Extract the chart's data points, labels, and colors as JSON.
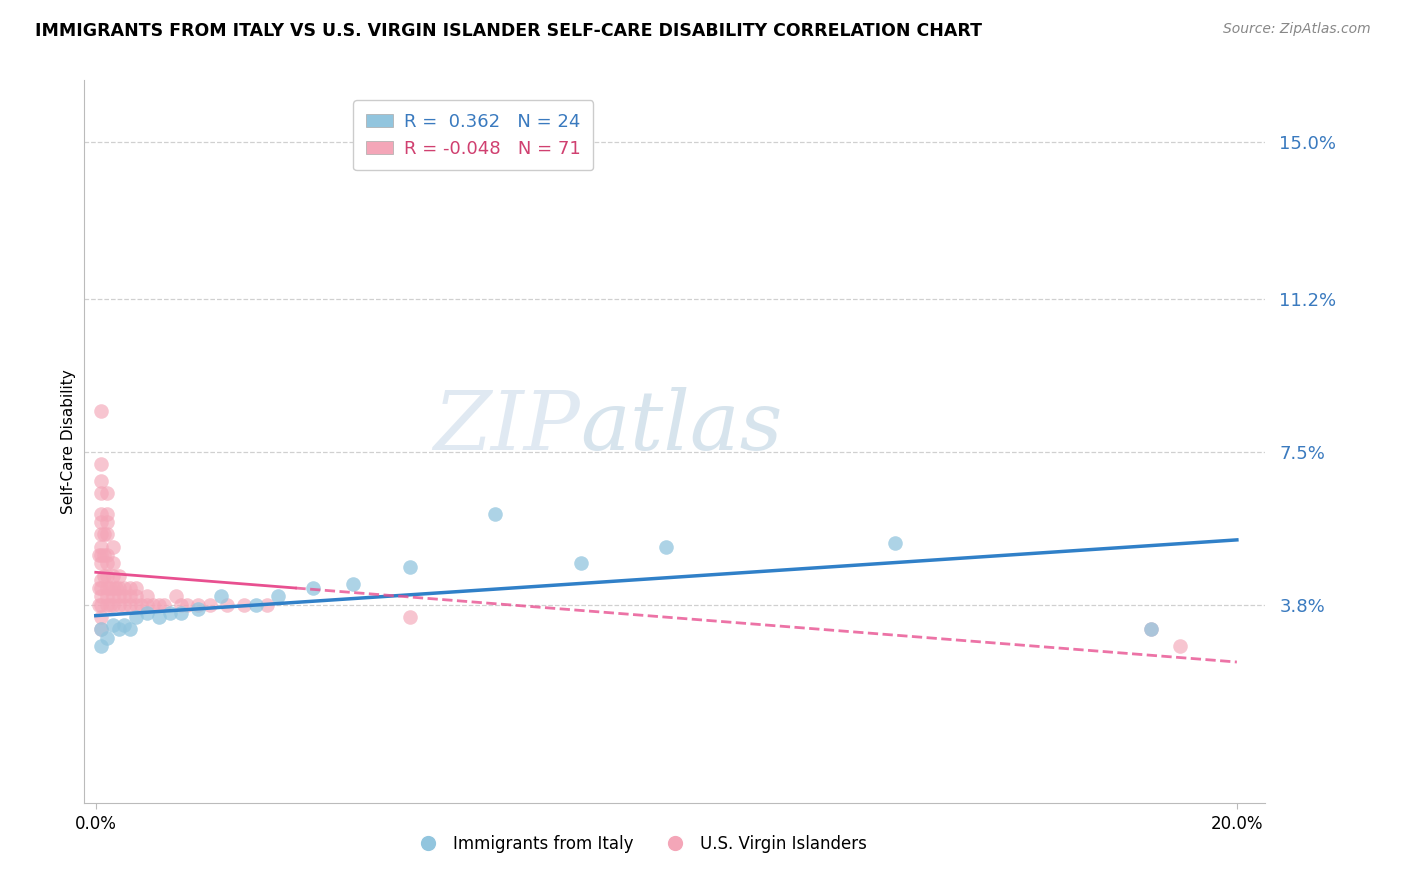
{
  "title": "IMMIGRANTS FROM ITALY VS U.S. VIRGIN ISLANDER SELF-CARE DISABILITY CORRELATION CHART",
  "source_text": "Source: ZipAtlas.com",
  "ylabel": "Self-Care Disability",
  "xlim": [
    -0.002,
    0.205
  ],
  "ylim": [
    -0.01,
    0.165
  ],
  "yticks": [
    0.038,
    0.075,
    0.112,
    0.15
  ],
  "ytick_labels": [
    "3.8%",
    "7.5%",
    "11.2%",
    "15.0%"
  ],
  "xtick_positions": [
    0.0,
    0.2
  ],
  "xtick_labels": [
    "0.0%",
    "20.0%"
  ],
  "blue_color": "#92c5de",
  "pink_color": "#f4a6b8",
  "blue_line_color": "#3080c8",
  "pink_line_color": "#e85090",
  "R_blue": 0.362,
  "N_blue": 24,
  "R_pink": -0.048,
  "N_pink": 71,
  "watermark_zip": "ZIP",
  "watermark_atlas": "atlas",
  "legend_label_blue": "Immigrants from Italy",
  "legend_label_pink": "U.S. Virgin Islanders",
  "blue_x": [
    0.001,
    0.001,
    0.002,
    0.003,
    0.004,
    0.005,
    0.006,
    0.007,
    0.009,
    0.011,
    0.013,
    0.015,
    0.018,
    0.022,
    0.028,
    0.032,
    0.038,
    0.045,
    0.055,
    0.07,
    0.085,
    0.1,
    0.14,
    0.185
  ],
  "blue_y": [
    0.028,
    0.032,
    0.03,
    0.033,
    0.032,
    0.033,
    0.032,
    0.035,
    0.036,
    0.035,
    0.036,
    0.036,
    0.037,
    0.04,
    0.038,
    0.04,
    0.042,
    0.043,
    0.047,
    0.06,
    0.048,
    0.052,
    0.053,
    0.032
  ],
  "pink_x": [
    0.0005,
    0.0005,
    0.0005,
    0.001,
    0.001,
    0.001,
    0.001,
    0.001,
    0.001,
    0.001,
    0.001,
    0.001,
    0.001,
    0.001,
    0.001,
    0.001,
    0.001,
    0.001,
    0.001,
    0.0015,
    0.0015,
    0.0015,
    0.002,
    0.002,
    0.002,
    0.002,
    0.002,
    0.002,
    0.002,
    0.002,
    0.002,
    0.002,
    0.0025,
    0.0025,
    0.003,
    0.003,
    0.003,
    0.003,
    0.003,
    0.003,
    0.0035,
    0.004,
    0.004,
    0.004,
    0.004,
    0.005,
    0.005,
    0.005,
    0.006,
    0.006,
    0.006,
    0.007,
    0.007,
    0.007,
    0.008,
    0.009,
    0.009,
    0.01,
    0.011,
    0.012,
    0.014,
    0.015,
    0.016,
    0.018,
    0.02,
    0.023,
    0.026,
    0.03,
    0.055,
    0.185,
    0.19
  ],
  "pink_y": [
    0.038,
    0.042,
    0.05,
    0.032,
    0.035,
    0.038,
    0.04,
    0.042,
    0.044,
    0.048,
    0.05,
    0.052,
    0.055,
    0.058,
    0.06,
    0.065,
    0.068,
    0.072,
    0.085,
    0.045,
    0.05,
    0.055,
    0.038,
    0.04,
    0.042,
    0.045,
    0.048,
    0.05,
    0.055,
    0.058,
    0.06,
    0.065,
    0.038,
    0.042,
    0.038,
    0.04,
    0.042,
    0.045,
    0.048,
    0.052,
    0.042,
    0.038,
    0.04,
    0.042,
    0.045,
    0.038,
    0.04,
    0.042,
    0.038,
    0.04,
    0.042,
    0.038,
    0.04,
    0.042,
    0.038,
    0.038,
    0.04,
    0.038,
    0.038,
    0.038,
    0.04,
    0.038,
    0.038,
    0.038,
    0.038,
    0.038,
    0.038,
    0.038,
    0.035,
    0.032,
    0.028
  ]
}
